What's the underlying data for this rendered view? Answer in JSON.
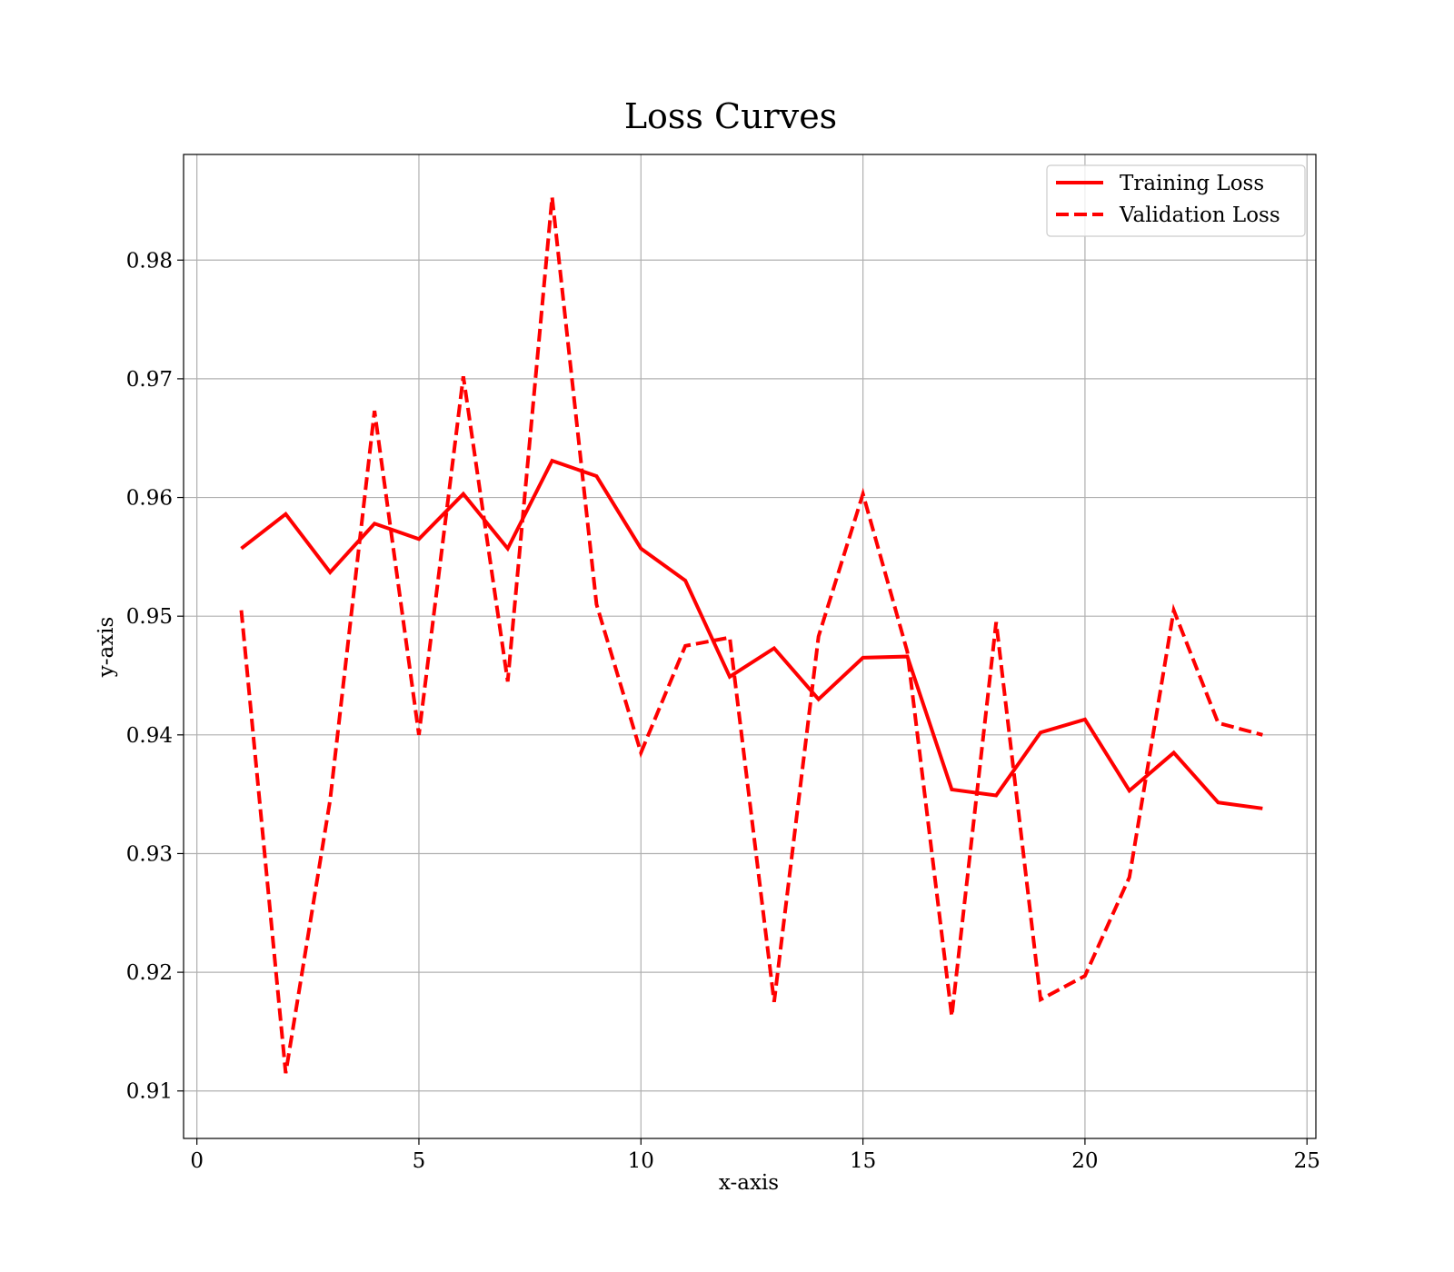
{
  "chart_data": {
    "type": "line",
    "title": "Loss Curves",
    "xlabel": "x-axis",
    "ylabel": "y-axis",
    "xlim": [
      -0.3,
      25.2
    ],
    "ylim": [
      0.906,
      0.9889
    ],
    "xticks": [
      0,
      5,
      10,
      15,
      20,
      25
    ],
    "xtick_labels": [
      "0",
      "5",
      "10",
      "15",
      "20",
      "25"
    ],
    "yticks": [
      0.91,
      0.92,
      0.93,
      0.94,
      0.95,
      0.96,
      0.97,
      0.98
    ],
    "ytick_labels": [
      "0.91",
      "0.92",
      "0.93",
      "0.94",
      "0.95",
      "0.96",
      "0.97",
      "0.98"
    ],
    "grid": true,
    "legend_position": "top-right",
    "x": [
      1,
      2,
      3,
      4,
      5,
      6,
      7,
      8,
      9,
      10,
      11,
      12,
      13,
      14,
      15,
      16,
      17,
      18,
      19,
      20,
      21,
      22,
      23,
      24
    ],
    "series": [
      {
        "name": "Training Loss",
        "style": "solid",
        "color": "#ff0000",
        "values": [
          0.9557,
          0.9586,
          0.9537,
          0.9578,
          0.9565,
          0.9603,
          0.9557,
          0.9631,
          0.9618,
          0.9557,
          0.953,
          0.9449,
          0.9473,
          0.943,
          0.9465,
          0.9466,
          0.9354,
          0.9349,
          0.9402,
          0.9413,
          0.9353,
          0.9385,
          0.9343,
          0.9338
        ]
      },
      {
        "name": "Validation Loss",
        "style": "dashed",
        "color": "#ff0000",
        "values": [
          0.9505,
          0.9115,
          0.9345,
          0.9673,
          0.94,
          0.9702,
          0.9445,
          0.9853,
          0.951,
          0.9385,
          0.9475,
          0.9482,
          0.9175,
          0.9483,
          0.9603,
          0.947,
          0.9163,
          0.9495,
          0.9177,
          0.9197,
          0.928,
          0.9505,
          0.941,
          0.94
        ]
      }
    ]
  }
}
